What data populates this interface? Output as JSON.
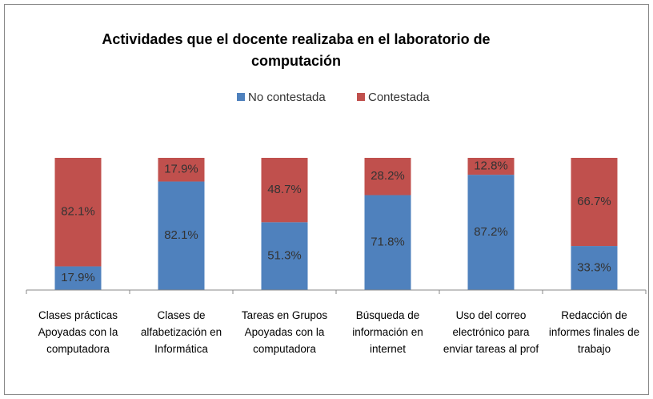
{
  "chart_data": {
    "type": "stacked_bar",
    "title": "Actividades que el docente realizaba en el laboratorio de computación",
    "categories": [
      "Clases prácticas Apoyadas con la computadora",
      "Clases de alfabetización en Informática",
      "Tareas en Grupos Apoyadas con la computadora",
      "Búsqueda de información en internet",
      "Uso del correo electrónico para enviar tareas al prof",
      "Redacción de informes finales de trabajo"
    ],
    "series": [
      {
        "name": "No contestada",
        "color": "#4f81bd",
        "values": [
          17.9,
          82.1,
          51.3,
          71.8,
          87.2,
          33.3
        ],
        "value_labels": [
          "17.9%",
          "82.1%",
          "51.3%",
          "71.8%",
          "87.2%",
          "33.3%"
        ]
      },
      {
        "name": "Contestada",
        "color": "#c0504d",
        "values": [
          82.1,
          17.9,
          48.7,
          28.2,
          12.8,
          66.7
        ],
        "value_labels": [
          "82.1%",
          "17.9%",
          "48.7%",
          "28.2%",
          "12.8%",
          "66.7%"
        ]
      }
    ],
    "ylim": [
      0,
      100
    ],
    "legend": "top"
  }
}
